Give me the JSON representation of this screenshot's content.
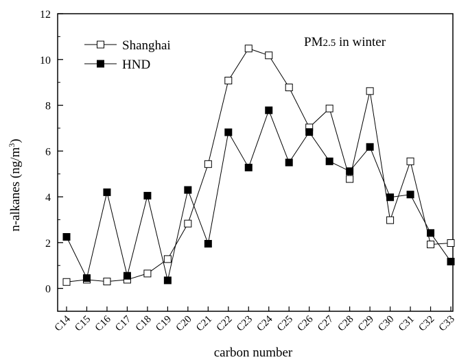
{
  "chart_data": {
    "type": "line",
    "title": "",
    "annotation": "PM2.5 in winter",
    "xlabel": "carbon number",
    "ylabel": "n-alkanes (ng/m3)",
    "ylim": [
      -1,
      12
    ],
    "yticks": [
      "0",
      "2",
      "4",
      "6",
      "8",
      "10",
      "12"
    ],
    "grid": false,
    "legend_placement": "top-left",
    "categories": [
      "C14",
      "C15",
      "C16",
      "C17",
      "C18",
      "C19",
      "C20",
      "C21",
      "C22",
      "C23",
      "C24",
      "C25",
      "C26",
      "C27",
      "C28",
      "C29",
      "C30",
      "C31",
      "C32",
      "C33"
    ],
    "series": [
      {
        "name": "Shanghai",
        "marker": "open-square",
        "color": "#000000",
        "values": [
          0.28,
          0.38,
          0.3,
          0.38,
          0.65,
          1.28,
          2.83,
          5.43,
          9.08,
          10.48,
          10.18,
          8.78,
          7.03,
          7.86,
          4.78,
          8.62,
          2.98,
          5.55,
          1.92,
          1.98
        ]
      },
      {
        "name": "HND",
        "marker": "filled-square",
        "color": "#000000",
        "values": [
          2.25,
          0.45,
          4.2,
          0.55,
          4.05,
          0.35,
          4.3,
          1.95,
          6.82,
          5.28,
          7.78,
          5.5,
          6.83,
          5.55,
          5.12,
          6.18,
          3.98,
          4.1,
          2.42,
          1.17
        ]
      }
    ]
  }
}
